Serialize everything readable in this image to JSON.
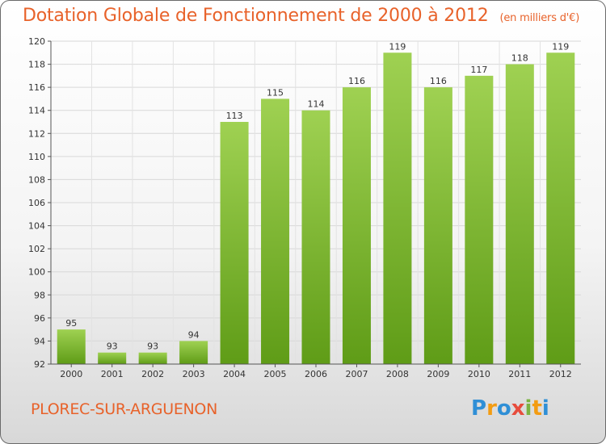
{
  "header": {
    "title": "Dotation Globale de Fonctionnement de 2000 à 2012",
    "unit": "(en milliers d'€)"
  },
  "footer": {
    "commune": "PLOREC-SUR-ARGUENON",
    "logo": "Proxiti"
  },
  "colors": {
    "title": "#e8622a",
    "bar_top": "#9fd152",
    "bar_bottom": "#5f9c17",
    "grid": "#d8d8d8"
  },
  "chart_data": {
    "type": "bar",
    "title": "Dotation Globale de Fonctionnement de 2000 à 2012",
    "ylabel": "",
    "xlabel": "",
    "categories": [
      "2000",
      "2001",
      "2002",
      "2003",
      "2004",
      "2005",
      "2006",
      "2007",
      "2008",
      "2009",
      "2010",
      "2011",
      "2012"
    ],
    "values": [
      95,
      93,
      93,
      94,
      113,
      115,
      114,
      116,
      119,
      116,
      117,
      118,
      119
    ],
    "ylim": [
      92,
      120
    ],
    "yticks": [
      92,
      94,
      96,
      98,
      100,
      102,
      104,
      106,
      108,
      110,
      112,
      114,
      116,
      118,
      120
    ],
    "grid": true
  }
}
